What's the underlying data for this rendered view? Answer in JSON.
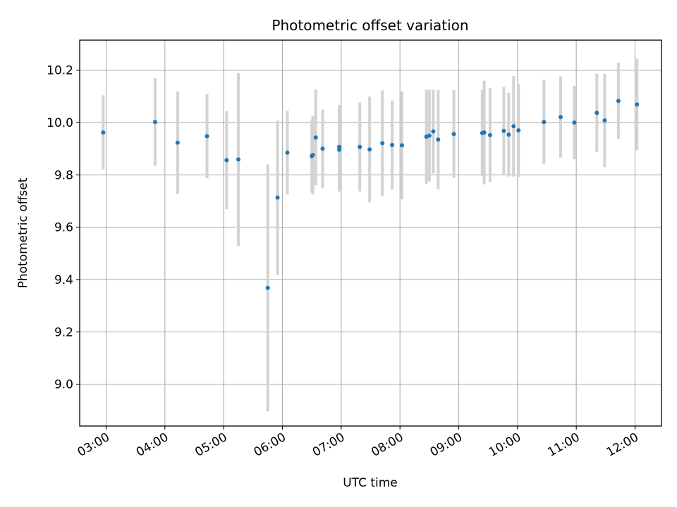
{
  "chart_data": {
    "type": "scatter",
    "title": "Photometric offset variation",
    "xlabel": "UTC time",
    "ylabel": "Photometric offset",
    "x_axis_kind": "time",
    "xlim": [
      "02:33",
      "12:27"
    ],
    "ylim": [
      8.84,
      10.315
    ],
    "x_ticks": [
      "03:00",
      "04:00",
      "05:00",
      "06:00",
      "07:00",
      "08:00",
      "09:00",
      "10:00",
      "11:00",
      "12:00"
    ],
    "y_ticks": [
      9.0,
      9.2,
      9.4,
      9.6,
      9.8,
      10.0,
      10.2
    ],
    "y_tick_labels": [
      "9.0",
      "9.2",
      "9.4",
      "9.6",
      "9.8",
      "10.0",
      "10.2"
    ],
    "grid": true,
    "legend": "none",
    "colors": {
      "point": "#1f77b4",
      "errorbar": "#d3d3d3",
      "grid": "#b0b0b0"
    },
    "series": [
      {
        "points": [
          {
            "x": "02:57",
            "y": 9.962,
            "err": 0.142
          },
          {
            "x": "03:50",
            "y": 10.002,
            "err": 0.167
          },
          {
            "x": "04:13",
            "y": 9.923,
            "err": 0.196
          },
          {
            "x": "04:43",
            "y": 9.948,
            "err": 0.161
          },
          {
            "x": "05:03",
            "y": 9.856,
            "err": 0.187
          },
          {
            "x": "05:15",
            "y": 9.859,
            "err": 0.33
          },
          {
            "x": "05:45",
            "y": 9.368,
            "err": 0.472
          },
          {
            "x": "05:55",
            "y": 9.713,
            "err": 0.295
          },
          {
            "x": "06:05",
            "y": 9.885,
            "err": 0.16
          },
          {
            "x": "06:30",
            "y": 9.872,
            "err": 0.14
          },
          {
            "x": "06:31",
            "y": 9.876,
            "err": 0.15
          },
          {
            "x": "06:34",
            "y": 9.943,
            "err": 0.183
          },
          {
            "x": "06:41",
            "y": 9.9,
            "err": 0.15
          },
          {
            "x": "06:58",
            "y": 9.896,
            "err": 0.16
          },
          {
            "x": "06:58",
            "y": 9.907,
            "err": 0.16
          },
          {
            "x": "07:19",
            "y": 9.907,
            "err": 0.17
          },
          {
            "x": "07:29",
            "y": 9.897,
            "err": 0.202
          },
          {
            "x": "07:42",
            "y": 9.921,
            "err": 0.202
          },
          {
            "x": "07:52",
            "y": 9.914,
            "err": 0.17
          },
          {
            "x": "08:02",
            "y": 9.913,
            "err": 0.206
          },
          {
            "x": "08:27",
            "y": 9.946,
            "err": 0.18
          },
          {
            "x": "08:30",
            "y": 9.95,
            "err": 0.175
          },
          {
            "x": "08:34",
            "y": 9.966,
            "err": 0.16
          },
          {
            "x": "08:39",
            "y": 9.935,
            "err": 0.19
          },
          {
            "x": "08:55",
            "y": 9.956,
            "err": 0.168
          },
          {
            "x": "09:24",
            "y": 9.96,
            "err": 0.165
          },
          {
            "x": "09:26",
            "y": 9.962,
            "err": 0.198
          },
          {
            "x": "09:32",
            "y": 9.952,
            "err": 0.18
          },
          {
            "x": "09:46",
            "y": 9.968,
            "err": 0.168
          },
          {
            "x": "09:51",
            "y": 9.954,
            "err": 0.16
          },
          {
            "x": "09:56",
            "y": 9.986,
            "err": 0.192
          },
          {
            "x": "10:01",
            "y": 9.97,
            "err": 0.178
          },
          {
            "x": "10:27",
            "y": 10.002,
            "err": 0.162
          },
          {
            "x": "10:44",
            "y": 10.021,
            "err": 0.155
          },
          {
            "x": "10:58",
            "y": 10.0,
            "err": 0.14
          },
          {
            "x": "11:21",
            "y": 10.037,
            "err": 0.15
          },
          {
            "x": "11:29",
            "y": 10.008,
            "err": 0.178
          },
          {
            "x": "11:43",
            "y": 10.083,
            "err": 0.146
          },
          {
            "x": "12:02",
            "y": 10.069,
            "err": 0.175
          }
        ]
      }
    ]
  }
}
